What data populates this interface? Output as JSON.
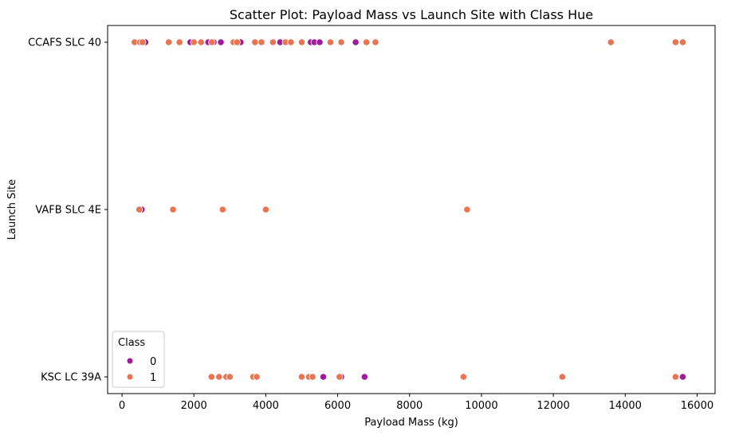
{
  "chart_data": {
    "type": "scatter",
    "title": "Scatter Plot: Payload Mass vs Launch Site with Class Hue",
    "xlabel": "Payload Mass (kg)",
    "ylabel": "Launch Site",
    "xlim": [
      -400,
      16500
    ],
    "x_ticks": [
      0,
      2000,
      4000,
      6000,
      8000,
      10000,
      12000,
      14000,
      16000
    ],
    "categories": [
      "CCAFS SLC 40",
      "VAFB SLC 4E",
      "KSC LC 39A"
    ],
    "grid": false,
    "legend": {
      "title": "Class",
      "placement": "lower-left"
    },
    "series": [
      {
        "name": "0",
        "color": "#a01a9c",
        "points": [
          {
            "x": 650,
            "y": "CCAFS SLC 40"
          },
          {
            "x": 1900,
            "y": "CCAFS SLC 40"
          },
          {
            "x": 2400,
            "y": "CCAFS SLC 40"
          },
          {
            "x": 2550,
            "y": "CCAFS SLC 40"
          },
          {
            "x": 2750,
            "y": "CCAFS SLC 40"
          },
          {
            "x": 3300,
            "y": "CCAFS SLC 40"
          },
          {
            "x": 4400,
            "y": "CCAFS SLC 40"
          },
          {
            "x": 5250,
            "y": "CCAFS SLC 40"
          },
          {
            "x": 5350,
            "y": "CCAFS SLC 40"
          },
          {
            "x": 5500,
            "y": "CCAFS SLC 40"
          },
          {
            "x": 6500,
            "y": "CCAFS SLC 40"
          },
          {
            "x": 550,
            "y": "VAFB SLC 4E"
          },
          {
            "x": 5600,
            "y": "KSC LC 39A"
          },
          {
            "x": 6100,
            "y": "KSC LC 39A"
          },
          {
            "x": 6750,
            "y": "KSC LC 39A"
          },
          {
            "x": 15600,
            "y": "KSC LC 39A"
          }
        ]
      },
      {
        "name": "1",
        "color": "#ea7351",
        "points": [
          {
            "x": 350,
            "y": "CCAFS SLC 40"
          },
          {
            "x": 500,
            "y": "CCAFS SLC 40"
          },
          {
            "x": 570,
            "y": "CCAFS SLC 40"
          },
          {
            "x": 1300,
            "y": "CCAFS SLC 40"
          },
          {
            "x": 1600,
            "y": "CCAFS SLC 40"
          },
          {
            "x": 2000,
            "y": "CCAFS SLC 40"
          },
          {
            "x": 2200,
            "y": "CCAFS SLC 40"
          },
          {
            "x": 2500,
            "y": "CCAFS SLC 40"
          },
          {
            "x": 3100,
            "y": "CCAFS SLC 40"
          },
          {
            "x": 3200,
            "y": "CCAFS SLC 40"
          },
          {
            "x": 3700,
            "y": "CCAFS SLC 40"
          },
          {
            "x": 3880,
            "y": "CCAFS SLC 40"
          },
          {
            "x": 4200,
            "y": "CCAFS SLC 40"
          },
          {
            "x": 4550,
            "y": "CCAFS SLC 40"
          },
          {
            "x": 4700,
            "y": "CCAFS SLC 40"
          },
          {
            "x": 5000,
            "y": "CCAFS SLC 40"
          },
          {
            "x": 5800,
            "y": "CCAFS SLC 40"
          },
          {
            "x": 6100,
            "y": "CCAFS SLC 40"
          },
          {
            "x": 6800,
            "y": "CCAFS SLC 40"
          },
          {
            "x": 7050,
            "y": "CCAFS SLC 40"
          },
          {
            "x": 13600,
            "y": "CCAFS SLC 40"
          },
          {
            "x": 15400,
            "y": "CCAFS SLC 40"
          },
          {
            "x": 15600,
            "y": "CCAFS SLC 40"
          },
          {
            "x": 480,
            "y": "VAFB SLC 4E"
          },
          {
            "x": 1420,
            "y": "VAFB SLC 4E"
          },
          {
            "x": 2800,
            "y": "VAFB SLC 4E"
          },
          {
            "x": 4000,
            "y": "VAFB SLC 4E"
          },
          {
            "x": 9600,
            "y": "VAFB SLC 4E"
          },
          {
            "x": 2490,
            "y": "KSC LC 39A"
          },
          {
            "x": 2700,
            "y": "KSC LC 39A"
          },
          {
            "x": 2900,
            "y": "KSC LC 39A"
          },
          {
            "x": 3000,
            "y": "KSC LC 39A"
          },
          {
            "x": 3650,
            "y": "KSC LC 39A"
          },
          {
            "x": 3750,
            "y": "KSC LC 39A"
          },
          {
            "x": 5000,
            "y": "KSC LC 39A"
          },
          {
            "x": 5200,
            "y": "KSC LC 39A"
          },
          {
            "x": 5300,
            "y": "KSC LC 39A"
          },
          {
            "x": 6050,
            "y": "KSC LC 39A"
          },
          {
            "x": 9500,
            "y": "KSC LC 39A"
          },
          {
            "x": 12250,
            "y": "KSC LC 39A"
          },
          {
            "x": 15400,
            "y": "KSC LC 39A"
          }
        ]
      }
    ]
  }
}
